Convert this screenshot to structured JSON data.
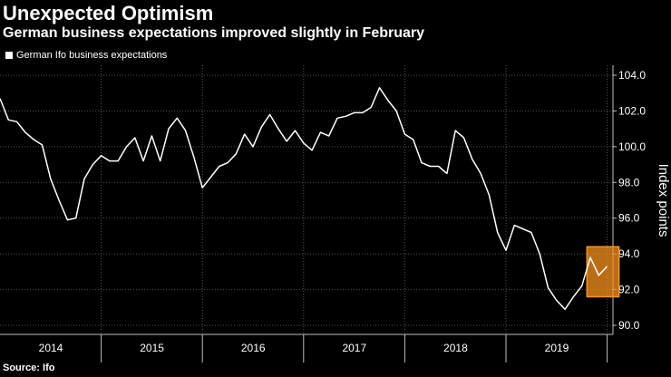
{
  "chart_data": {
    "type": "line",
    "title": "Unexpected Optimism",
    "subtitle": "German business expectations improved slightly in February",
    "ylabel": "Index points",
    "xlabel": "",
    "ylim": [
      90.0,
      104.0
    ],
    "y_ticks": [
      90.0,
      92.0,
      94.0,
      96.0,
      98.0,
      100.0,
      102.0,
      104.0
    ],
    "y_tick_labels": [
      "90.0",
      "92.0",
      "94.0",
      "96.0",
      "98.0",
      "100.0",
      "102.0",
      "104.0"
    ],
    "x_start": "2013-12",
    "x_range": [
      0,
      62
    ],
    "year_labels": [
      "2014",
      "2015",
      "2016",
      "2017",
      "2018",
      "2019"
    ],
    "year_label_centers": [
      6.5,
      18.5,
      30.5,
      42.5,
      54.5,
      66.5
    ],
    "year_dividers": [
      12,
      24,
      36,
      48,
      60,
      72
    ],
    "legend": [
      {
        "label": "German Ifo business expectations",
        "color": "#ffffff"
      }
    ],
    "series": [
      {
        "name": "German Ifo business expectations",
        "color": "#ffffff",
        "values": [
          102.7,
          101.5,
          101.4,
          100.8,
          100.4,
          100.1,
          98.2,
          97.0,
          95.9,
          96.0,
          98.2,
          99.0,
          99.5,
          99.2,
          99.2,
          100.0,
          100.5,
          99.2,
          100.6,
          99.2,
          101.0,
          101.6,
          100.9,
          99.4,
          97.7,
          98.3,
          98.9,
          99.1,
          99.6,
          100.7,
          100.0,
          101.1,
          101.8,
          101.0,
          100.3,
          100.9,
          100.2,
          99.8,
          100.8,
          100.6,
          101.6,
          101.7,
          101.9,
          101.9,
          102.2,
          103.3,
          102.6,
          102.0,
          100.7,
          100.4,
          99.1,
          98.9,
          98.9,
          98.5,
          100.9,
          100.5,
          99.3,
          98.5,
          97.3,
          95.2,
          94.2,
          95.6,
          95.4,
          95.2,
          94.0,
          92.1,
          91.4,
          90.9,
          91.6,
          92.2,
          93.8,
          92.8,
          93.3
        ]
      }
    ],
    "highlight": {
      "start_index": 71,
      "end_index": 72,
      "ymin": 91.6,
      "ymax": 94.4,
      "fill": "#f7931e",
      "stroke": "#f7931e"
    }
  },
  "source": "Source: Ifo",
  "colors": {
    "background": "#000000",
    "line": "#ffffff",
    "grid": "#555555",
    "highlight": "#f7931e",
    "axis": "#bfbfbf"
  }
}
